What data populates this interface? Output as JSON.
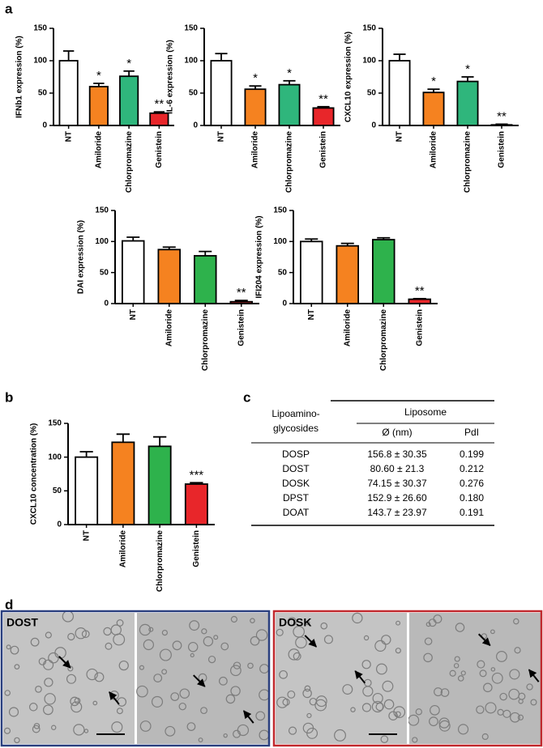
{
  "panel_labels": [
    "a",
    "b",
    "c",
    "d"
  ],
  "chart_data": [
    {
      "type": "bar",
      "y_label": "IFNb1 expression (%)",
      "categories": [
        "NT",
        "Amiloride",
        "Chlorpromazine",
        "Genistein"
      ],
      "values": [
        100,
        60,
        76,
        19
      ],
      "errors": [
        15,
        5,
        8,
        2
      ],
      "colors": [
        "#ffffff",
        "#f58220",
        "#2fb67c",
        "#e8262a"
      ],
      "annotations": [
        null,
        "*",
        "*",
        "**"
      ],
      "ylim": [
        0,
        150
      ],
      "yticks": [
        0,
        50,
        100,
        150
      ]
    },
    {
      "type": "bar",
      "y_label": "IL-6 expression (%)",
      "categories": [
        "NT",
        "Amiloride",
        "Chlorpromazine",
        "Genistein"
      ],
      "values": [
        100,
        56,
        63,
        27
      ],
      "errors": [
        11,
        5,
        6,
        2
      ],
      "colors": [
        "#ffffff",
        "#f58220",
        "#2fb67c",
        "#e8262a"
      ],
      "annotations": [
        null,
        "*",
        "*",
        "**"
      ],
      "ylim": [
        0,
        150
      ],
      "yticks": [
        0,
        50,
        100,
        150
      ]
    },
    {
      "type": "bar",
      "y_label": "CXCL10 expression (%)",
      "categories": [
        "NT",
        "Amiloride",
        "Chlorpromazine",
        "Genistein"
      ],
      "values": [
        100,
        51,
        68,
        1
      ],
      "errors": [
        10,
        5,
        7,
        1
      ],
      "colors": [
        "#ffffff",
        "#f58220",
        "#2fb67c",
        "#e8262a"
      ],
      "annotations": [
        null,
        "*",
        "*",
        "**"
      ],
      "ylim": [
        0,
        150
      ],
      "yticks": [
        0,
        50,
        100,
        150
      ]
    },
    {
      "type": "bar",
      "y_label": "DAI expression (%)",
      "categories": [
        "NT",
        "Amiloride",
        "Chlorpromazine",
        "Genistein"
      ],
      "values": [
        101,
        87,
        77,
        3
      ],
      "errors": [
        6,
        4,
        7,
        2
      ],
      "colors": [
        "#ffffff",
        "#f58220",
        "#2eb24c",
        "#e8262a"
      ],
      "annotations": [
        null,
        null,
        null,
        "**"
      ],
      "ylim": [
        0,
        150
      ],
      "yticks": [
        0,
        50,
        100,
        150
      ]
    },
    {
      "type": "bar",
      "y_label": "IFI204 expression (%)",
      "categories": [
        "NT",
        "Amiloride",
        "Chlorpromazine",
        "Genistein"
      ],
      "values": [
        100,
        93,
        103,
        7
      ],
      "errors": [
        4,
        4,
        3,
        1
      ],
      "colors": [
        "#ffffff",
        "#f58220",
        "#2eb24c",
        "#e8262a"
      ],
      "annotations": [
        null,
        null,
        null,
        "**"
      ],
      "ylim": [
        0,
        150
      ],
      "yticks": [
        0,
        50,
        100,
        150
      ]
    },
    {
      "type": "bar",
      "y_label": "CXCL10 concentration (%)",
      "categories": [
        "NT",
        "Amiloride",
        "Chlorpromazine",
        "Genistein"
      ],
      "values": [
        100,
        122,
        116,
        60
      ],
      "errors": [
        8,
        12,
        14,
        2
      ],
      "colors": [
        "#ffffff",
        "#f58220",
        "#2eb24c",
        "#e8262a"
      ],
      "annotations": [
        null,
        null,
        null,
        "***"
      ],
      "ylim": [
        0,
        150
      ],
      "yticks": [
        0,
        50,
        100,
        150
      ]
    }
  ],
  "table": {
    "row_header": [
      "Lipoamino-",
      "glycosides"
    ],
    "group_header": "Liposome",
    "columns": [
      "Ø (nm)",
      "PdI"
    ],
    "rows": [
      [
        "DOSP",
        "156.8 ± 30.35",
        "0.199"
      ],
      [
        "DOST",
        "80.60 ± 21.3",
        "0.212"
      ],
      [
        "DOSK",
        "74.15 ± 30.37",
        "0.276"
      ],
      [
        "DPST",
        "152.9 ± 26.60",
        "0.180"
      ],
      [
        "DOAT",
        "143.7 ± 23.97",
        "0.191"
      ]
    ]
  },
  "micrographs": [
    {
      "label": "DOST",
      "color": "#2a3f7e"
    },
    {
      "label": "DOSK",
      "color": "#c0282d"
    }
  ]
}
